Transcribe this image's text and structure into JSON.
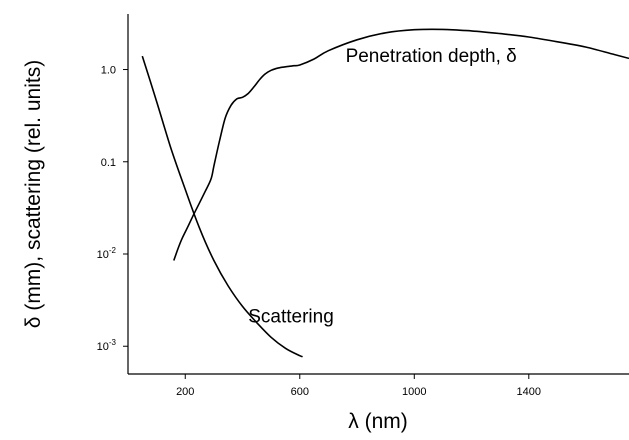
{
  "chart_data": {
    "type": "line",
    "title": "",
    "xlabel": "λ (nm)",
    "ylabel": "δ (mm), scattering (rel. units)",
    "xlim": [
      0,
      1750
    ],
    "ylim": [
      0.0005,
      4
    ],
    "y_scale": "log",
    "grid": false,
    "legend": "none",
    "x_ticks": [
      {
        "value": 200,
        "label": "200"
      },
      {
        "value": 600,
        "label": "600"
      },
      {
        "value": 1000,
        "label": "1000"
      },
      {
        "value": 1400,
        "label": "1400"
      }
    ],
    "y_ticks": [
      {
        "value": 0.001,
        "label": "10",
        "sup": "-3"
      },
      {
        "value": 0.01,
        "label": "10",
        "sup": "-2"
      },
      {
        "value": 0.1,
        "label": "0.1",
        "sup": ""
      },
      {
        "value": 1.0,
        "label": "1.0",
        "sup": ""
      }
    ],
    "series": [
      {
        "name": "Penetration depth, δ",
        "x": [
          160,
          175,
          190,
          210,
          230,
          250,
          270,
          290,
          300,
          320,
          340,
          360,
          380,
          400,
          420,
          440,
          460,
          480,
          500,
          520,
          540,
          560,
          580,
          600,
          650,
          700,
          800,
          900,
          1000,
          1100,
          1200,
          1300,
          1400,
          1500,
          1600,
          1700,
          1750
        ],
        "y": [
          0.0085,
          0.0115,
          0.015,
          0.02,
          0.027,
          0.036,
          0.048,
          0.065,
          0.09,
          0.17,
          0.3,
          0.41,
          0.48,
          0.5,
          0.55,
          0.65,
          0.78,
          0.9,
          0.98,
          1.03,
          1.06,
          1.08,
          1.1,
          1.12,
          1.3,
          1.6,
          2.1,
          2.5,
          2.7,
          2.72,
          2.62,
          2.45,
          2.25,
          2.0,
          1.75,
          1.45,
          1.32
        ]
      },
      {
        "name": "Scattering",
        "x": [
          50,
          100,
          150,
          200,
          250,
          300,
          350,
          400,
          450,
          500,
          550,
          600,
          610
        ],
        "y": [
          1.4,
          0.45,
          0.14,
          0.05,
          0.019,
          0.0085,
          0.0045,
          0.0027,
          0.0018,
          0.00125,
          0.00095,
          0.00079,
          0.00077
        ]
      }
    ],
    "annotations": [
      {
        "text": "Penetration depth, δ",
        "x": 760,
        "y": 1.2
      },
      {
        "text": "Scattering",
        "x": 420,
        "y": 0.0018
      }
    ]
  }
}
